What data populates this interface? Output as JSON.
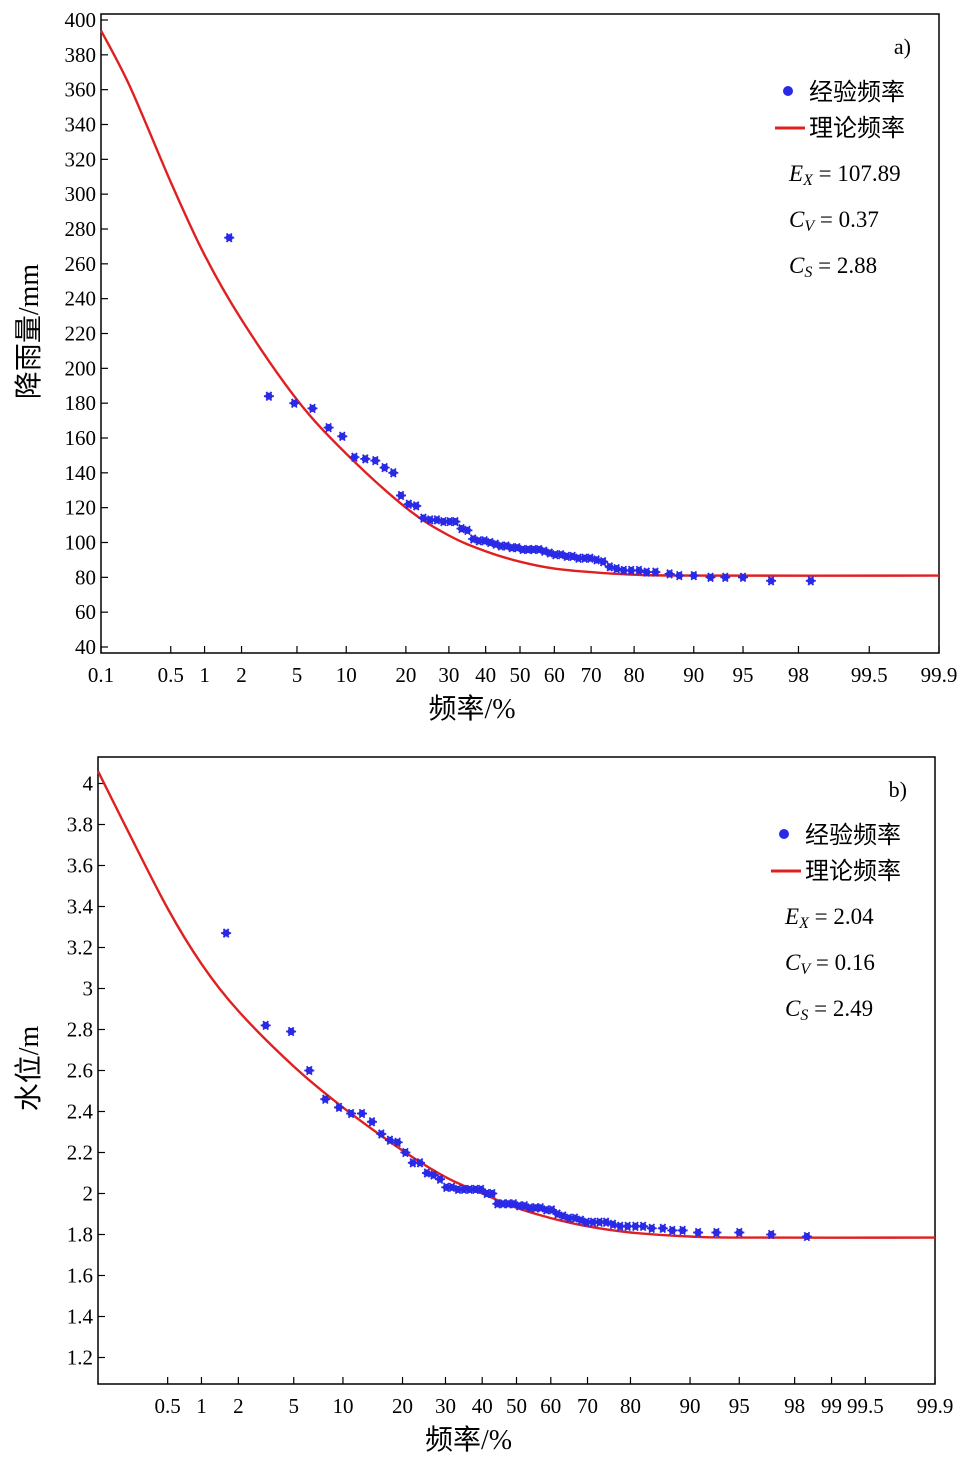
{
  "chart_data": [
    {
      "type": "scatter",
      "panel_label": "a)",
      "xlabel": "频率/%",
      "ylabel": "降雨量/mm",
      "x_scale": "probability (normal)",
      "xlim": [
        0.1,
        99.9
      ],
      "ylim": [
        40,
        400
      ],
      "x_ticks": [
        0.1,
        0.5,
        1,
        2,
        5,
        10,
        20,
        30,
        40,
        50,
        60,
        70,
        80,
        90,
        95,
        98,
        99.5,
        99.9
      ],
      "x_tick_labels": [
        "0.1",
        "0.5",
        "1",
        "2",
        "5",
        "10",
        "20",
        "30",
        "40",
        "50",
        "60",
        "70",
        "80",
        "90",
        "95",
        "98",
        "99.5",
        "99.9"
      ],
      "y_ticks": [
        40,
        60,
        80,
        100,
        120,
        140,
        160,
        180,
        200,
        220,
        240,
        260,
        280,
        300,
        320,
        340,
        360,
        380,
        400
      ],
      "y_tick_labels": [
        "40",
        "60",
        "80",
        "100",
        "120",
        "140",
        "160",
        "180",
        "200",
        "220",
        "240",
        "260",
        "280",
        "300",
        "320",
        "340",
        "360",
        "380",
        "400"
      ],
      "grid": false,
      "legend_position": "top-right",
      "legend": [
        {
          "label": "经验频率",
          "marker": "dot",
          "color": "#2a2ae6"
        },
        {
          "label": "理论频率",
          "marker": "line",
          "color": "#e02020"
        }
      ],
      "stats": [
        {
          "sym": "E",
          "sub": "X",
          "value": "= 107.89"
        },
        {
          "sym": "C",
          "sub": "V",
          "value": "= 0.37"
        },
        {
          "sym": "C",
          "sub": "S",
          "value": "= 2.88"
        }
      ],
      "series": [
        {
          "name": "经验频率",
          "kind": "scatter",
          "color": "#2a2ae6",
          "points": [
            [
              1.6,
              275
            ],
            [
              3.2,
              184
            ],
            [
              4.8,
              180
            ],
            [
              6.3,
              177
            ],
            [
              7.9,
              166
            ],
            [
              9.5,
              161
            ],
            [
              11.1,
              149
            ],
            [
              12.7,
              148
            ],
            [
              14.3,
              147
            ],
            [
              15.9,
              143
            ],
            [
              17.5,
              140
            ],
            [
              19.0,
              127
            ],
            [
              20.6,
              122
            ],
            [
              22.2,
              121
            ],
            [
              23.8,
              114
            ],
            [
              25.4,
              113
            ],
            [
              27.0,
              113
            ],
            [
              28.6,
              112
            ],
            [
              30.2,
              112
            ],
            [
              31.7,
              112
            ],
            [
              33.3,
              108
            ],
            [
              34.9,
              107
            ],
            [
              36.5,
              102
            ],
            [
              38.1,
              101
            ],
            [
              39.7,
              101
            ],
            [
              41.3,
              100
            ],
            [
              42.9,
              99
            ],
            [
              44.4,
              98
            ],
            [
              46.0,
              98
            ],
            [
              47.6,
              97
            ],
            [
              49.2,
              97
            ],
            [
              50.8,
              96
            ],
            [
              52.4,
              96
            ],
            [
              54.0,
              96
            ],
            [
              55.6,
              96
            ],
            [
              57.1,
              95
            ],
            [
              58.7,
              94
            ],
            [
              60.3,
              93
            ],
            [
              61.9,
              93
            ],
            [
              63.5,
              92
            ],
            [
              65.1,
              92
            ],
            [
              66.7,
              91
            ],
            [
              68.3,
              91
            ],
            [
              69.8,
              91
            ],
            [
              71.4,
              90
            ],
            [
              73.0,
              89
            ],
            [
              74.6,
              86
            ],
            [
              76.2,
              85
            ],
            [
              77.8,
              84
            ],
            [
              79.4,
              84
            ],
            [
              81.0,
              84
            ],
            [
              82.5,
              83
            ],
            [
              84.1,
              83
            ],
            [
              86.5,
              82
            ],
            [
              88.0,
              81
            ],
            [
              90.0,
              81
            ],
            [
              92.0,
              80
            ],
            [
              93.5,
              80
            ],
            [
              95.0,
              80
            ],
            [
              96.8,
              78
            ],
            [
              98.4,
              78
            ]
          ]
        },
        {
          "name": "理论频率",
          "kind": "line",
          "color": "#e02020",
          "points": [
            [
              0.1,
              394
            ],
            [
              0.2,
              362
            ],
            [
              0.5,
              307
            ],
            [
              1,
              265
            ],
            [
              2,
              228
            ],
            [
              5,
              182
            ],
            [
              10,
              151
            ],
            [
              20,
              120
            ],
            [
              30,
              104
            ],
            [
              40,
              95
            ],
            [
              50,
              89
            ],
            [
              60,
              85
            ],
            [
              70,
              83
            ],
            [
              80,
              81.5
            ],
            [
              90,
              81
            ],
            [
              99.9,
              81
            ]
          ]
        }
      ]
    },
    {
      "type": "scatter",
      "panel_label": "b)",
      "xlabel": "频率/%",
      "ylabel": "水位/m",
      "x_scale": "probability (normal)",
      "xlim": [
        0.1,
        99.9
      ],
      "ylim": [
        1.1,
        4.1
      ],
      "x_ticks": [
        0.5,
        1,
        2,
        5,
        10,
        20,
        30,
        40,
        50,
        60,
        70,
        80,
        90,
        95,
        98,
        99,
        99.5,
        99.9
      ],
      "x_tick_labels": [
        "0.5",
        "1",
        "2",
        "5",
        "10",
        "20",
        "30",
        "40",
        "50",
        "60",
        "70",
        "80",
        "90",
        "95",
        "98",
        "99",
        "99.5",
        "99.9"
      ],
      "y_ticks": [
        1.2,
        1.4,
        1.6,
        1.8,
        2,
        2.2,
        2.4,
        2.6,
        2.8,
        3,
        3.2,
        3.4,
        3.6,
        3.8,
        4
      ],
      "y_tick_labels": [
        "1.2",
        "1.4",
        "1.6",
        "1.8",
        "2",
        "2.2",
        "2.4",
        "2.6",
        "2.8",
        "3",
        "3.2",
        "3.4",
        "3.6",
        "3.8",
        "4"
      ],
      "grid": false,
      "legend_position": "top-right",
      "legend": [
        {
          "label": "经验频率",
          "marker": "dot",
          "color": "#2a2ae6"
        },
        {
          "label": "理论频率",
          "marker": "line",
          "color": "#e02020"
        }
      ],
      "stats": [
        {
          "sym": "E",
          "sub": "X",
          "value": "= 2.04"
        },
        {
          "sym": "C",
          "sub": "V",
          "value": "= 0.16"
        },
        {
          "sym": "C",
          "sub": "S",
          "value": "= 2.49"
        }
      ],
      "series": [
        {
          "name": "经验频率",
          "kind": "scatter",
          "color": "#2a2ae6",
          "points": [
            [
              1.6,
              3.27
            ],
            [
              3.2,
              2.82
            ],
            [
              4.8,
              2.79
            ],
            [
              6.3,
              2.6
            ],
            [
              7.9,
              2.46
            ],
            [
              9.5,
              2.42
            ],
            [
              11.1,
              2.39
            ],
            [
              12.7,
              2.39
            ],
            [
              14.3,
              2.35
            ],
            [
              15.9,
              2.29
            ],
            [
              17.5,
              2.26
            ],
            [
              19.0,
              2.25
            ],
            [
              20.6,
              2.2
            ],
            [
              22.2,
              2.15
            ],
            [
              23.8,
              2.15
            ],
            [
              25.4,
              2.1
            ],
            [
              27.0,
              2.09
            ],
            [
              28.6,
              2.07
            ],
            [
              30.2,
              2.03
            ],
            [
              31.7,
              2.03
            ],
            [
              33.3,
              2.02
            ],
            [
              34.9,
              2.02
            ],
            [
              36.5,
              2.02
            ],
            [
              38.1,
              2.02
            ],
            [
              39.7,
              2.02
            ],
            [
              41.3,
              2.0
            ],
            [
              42.9,
              2.0
            ],
            [
              44.4,
              1.95
            ],
            [
              46.0,
              1.95
            ],
            [
              47.6,
              1.95
            ],
            [
              49.2,
              1.95
            ],
            [
              50.8,
              1.94
            ],
            [
              52.4,
              1.94
            ],
            [
              54.0,
              1.93
            ],
            [
              55.6,
              1.93
            ],
            [
              57.1,
              1.93
            ],
            [
              58.7,
              1.92
            ],
            [
              60.3,
              1.92
            ],
            [
              61.9,
              1.9
            ],
            [
              63.5,
              1.89
            ],
            [
              65.1,
              1.88
            ],
            [
              66.7,
              1.88
            ],
            [
              68.3,
              1.87
            ],
            [
              69.8,
              1.86
            ],
            [
              71.4,
              1.86
            ],
            [
              73.0,
              1.86
            ],
            [
              74.6,
              1.86
            ],
            [
              76.2,
              1.85
            ],
            [
              77.8,
              1.84
            ],
            [
              79.4,
              1.84
            ],
            [
              81.0,
              1.84
            ],
            [
              82.5,
              1.84
            ],
            [
              84.1,
              1.83
            ],
            [
              86.0,
              1.83
            ],
            [
              87.5,
              1.82
            ],
            [
              89.0,
              1.82
            ],
            [
              91.0,
              1.81
            ],
            [
              93.0,
              1.81
            ],
            [
              95.0,
              1.81
            ],
            [
              97.0,
              1.8
            ],
            [
              98.4,
              1.79
            ]
          ]
        },
        {
          "name": "理论频率",
          "kind": "line",
          "color": "#e02020",
          "points": [
            [
              0.1,
              4.06
            ],
            [
              0.2,
              3.78
            ],
            [
              0.5,
              3.39
            ],
            [
              1,
              3.12
            ],
            [
              2,
              2.89
            ],
            [
              5,
              2.62
            ],
            [
              10,
              2.42
            ],
            [
              20,
              2.21
            ],
            [
              30,
              2.08
            ],
            [
              40,
              2.0
            ],
            [
              50,
              1.93
            ],
            [
              60,
              1.88
            ],
            [
              70,
              1.84
            ],
            [
              80,
              1.81
            ],
            [
              90,
              1.79
            ],
            [
              95,
              1.785
            ],
            [
              99.9,
              1.785
            ]
          ]
        }
      ]
    }
  ]
}
